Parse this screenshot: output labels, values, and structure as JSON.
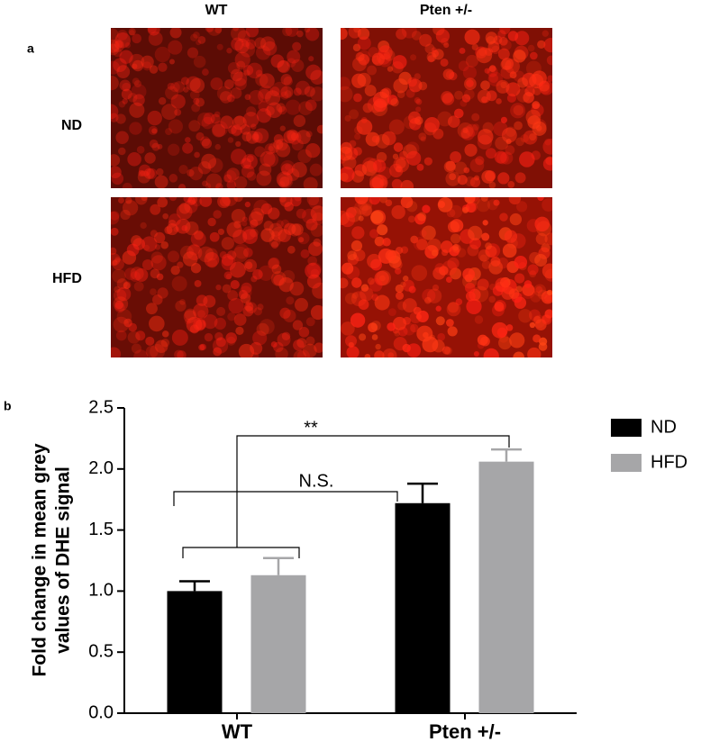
{
  "panel_a": {
    "label": "a",
    "columns": [
      "WT",
      "Pten +/-"
    ],
    "rows": [
      "ND",
      "HFD"
    ]
  },
  "chart_data": {
    "type": "bar",
    "panel_label": "b",
    "ylabel": [
      "Fold change in mean grey",
      "values of DHE signal"
    ],
    "categories": [
      "WT",
      "Pten +/-"
    ],
    "series": [
      {
        "name": "ND",
        "color": "#000000",
        "values": [
          1.0,
          1.72
        ],
        "errors": [
          0.08,
          0.16
        ]
      },
      {
        "name": "HFD",
        "color": "#a6a6a8",
        "values": [
          1.13,
          2.06
        ],
        "errors": [
          0.14,
          0.1
        ]
      }
    ],
    "ylim": [
      0,
      2.5
    ],
    "yticks": [
      {
        "value": 0,
        "label": "0.0"
      },
      0.5,
      {
        "value": 1,
        "label": "1.0"
      },
      1.5,
      {
        "value": 2,
        "label": "2.0"
      },
      2.5
    ],
    "annotations": [
      "N.S.",
      "**"
    ]
  }
}
